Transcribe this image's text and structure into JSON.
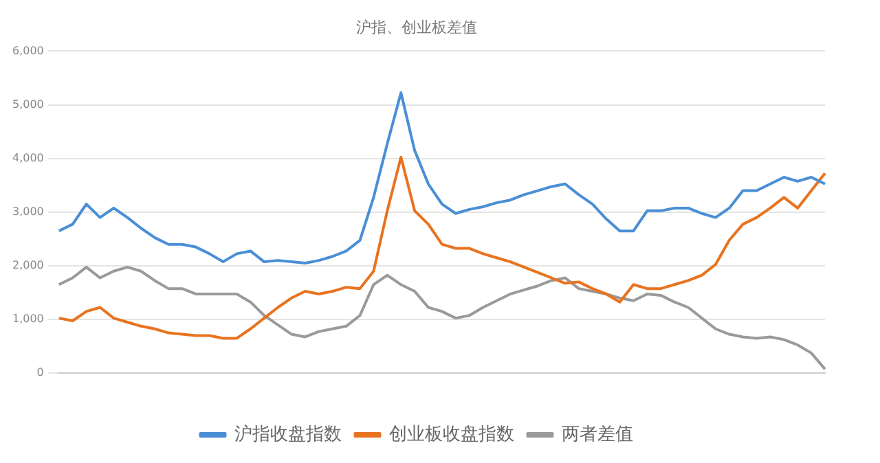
{
  "chart_data": {
    "type": "line",
    "title": "沪指、创业板差值",
    "categories": [
      null,
      null,
      null,
      null,
      null,
      null,
      null,
      null,
      null,
      null,
      null,
      null,
      null,
      null,
      null,
      null,
      null,
      null,
      null,
      null,
      null,
      null,
      null,
      null,
      null,
      null,
      null,
      null,
      null,
      null,
      null,
      null,
      null,
      null,
      null,
      null,
      null,
      null,
      null,
      null,
      null,
      null,
      null,
      null,
      null,
      null,
      null,
      null,
      null,
      null,
      null,
      null,
      null,
      null,
      null,
      null,
      null
    ],
    "series": [
      {
        "name": "沪指收盘指数",
        "color": "#4a8fd6",
        "values": [
          2650,
          2775,
          3150,
          2900,
          3075,
          2900,
          2700,
          2525,
          2400,
          2400,
          2350,
          2225,
          2075,
          2225,
          2275,
          2075,
          2100,
          2075,
          2050,
          2100,
          2175,
          2275,
          2475,
          3275,
          4275,
          5225,
          4150,
          3525,
          3150,
          2975,
          3050,
          3100,
          3175,
          3225,
          3325,
          3400,
          3475,
          3525,
          3325,
          3150,
          2875,
          2650,
          2650,
          3025,
          3025,
          3075,
          3075,
          2975,
          2900,
          3075,
          3400,
          3400,
          3525,
          3650,
          3575,
          3650,
          3525
        ]
      },
      {
        "name": "创业板收盘指数",
        "color": "#e8731f",
        "values": [
          1025,
          975,
          1150,
          1225,
          1025,
          950,
          875,
          825,
          750,
          725,
          700,
          700,
          650,
          650,
          825,
          1025,
          1225,
          1400,
          1525,
          1475,
          1525,
          1600,
          1575,
          1900,
          3025,
          4025,
          3025,
          2775,
          2400,
          2325,
          2325,
          2225,
          2150,
          2075,
          1975,
          1875,
          1775,
          1675,
          1700,
          1575,
          1475,
          1325,
          1650,
          1575,
          1575,
          1650,
          1725,
          1825,
          2025,
          2475,
          2775,
          2900,
          3075,
          3275,
          3075,
          3400,
          3725
        ]
      },
      {
        "name": "两者差值",
        "color": "#9a9a9a",
        "values": [
          1650,
          1775,
          1975,
          1775,
          1900,
          1975,
          1900,
          1725,
          1575,
          1575,
          1475,
          1475,
          1475,
          1475,
          1325,
          1075,
          900,
          725,
          675,
          775,
          825,
          875,
          1075,
          1650,
          1825,
          1650,
          1525,
          1225,
          1150,
          1025,
          1075,
          1225,
          1350,
          1475,
          1550,
          1625,
          1725,
          1775,
          1575,
          1525,
          1475,
          1400,
          1350,
          1475,
          1450,
          1325,
          1225,
          1025,
          825,
          725,
          675,
          650,
          675,
          625,
          525,
          375,
          75
        ]
      }
    ],
    "ylim": [
      0,
      6000
    ],
    "yticks": [
      0,
      {
        "value": 1000,
        "label": "1,000"
      },
      {
        "value": 2000,
        "label": "2,000"
      },
      {
        "value": 3000,
        "label": "3,000"
      },
      {
        "value": 4000,
        "label": "4,000"
      },
      {
        "value": 5000,
        "label": "5,000"
      },
      {
        "value": 6000,
        "label": "6,000"
      }
    ],
    "grid": "y",
    "legend": "bottom",
    "marker": "none",
    "line_style": "solid"
  }
}
